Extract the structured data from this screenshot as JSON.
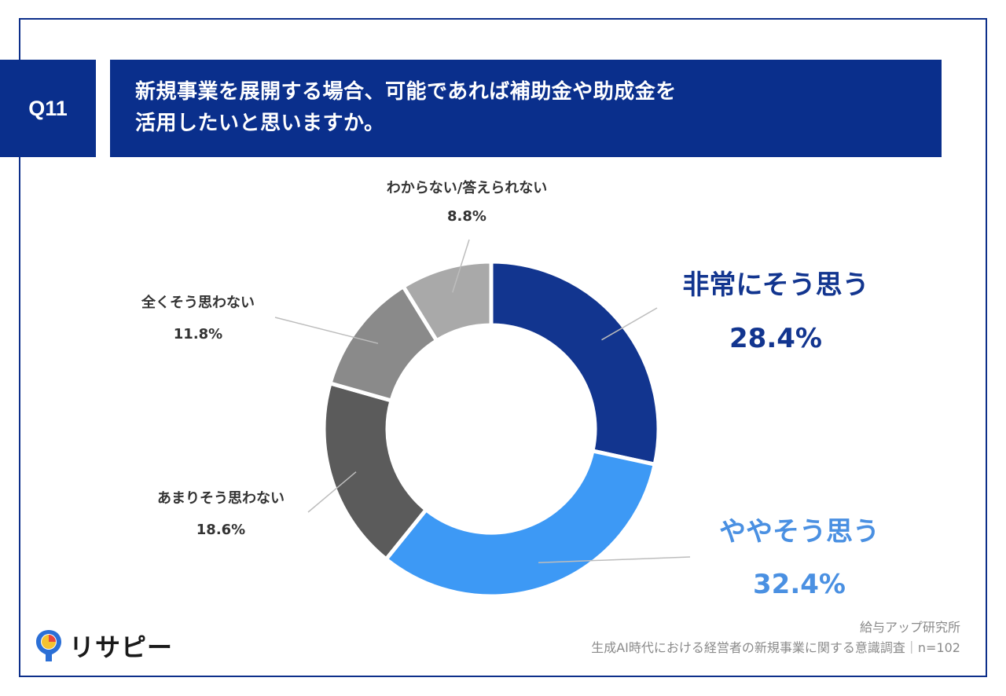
{
  "question": {
    "number": "Q11",
    "line1": "新規事業を展開する場合、可能であれば補助金や助成金を",
    "line2": "活用したいと思いますか。"
  },
  "chart_data": {
    "type": "pie",
    "variant": "donut",
    "unit": "%",
    "slices": [
      {
        "label": "非常にそう思う",
        "value": 28.4,
        "value_label": "28.4%",
        "color": "#12358f"
      },
      {
        "label": "ややそう思う",
        "value": 32.4,
        "value_label": "32.4%",
        "color": "#3d99f5"
      },
      {
        "label": "あまりそう思わない",
        "value": 18.6,
        "value_label": "18.6%",
        "color": "#5b5b5b"
      },
      {
        "label": "全くそう思わない",
        "value": 11.8,
        "value_label": "11.8%",
        "color": "#8a8a8a"
      },
      {
        "label": "わからない/答えられない",
        "value": 8.8,
        "value_label": "8.8%",
        "color": "#a9a9a9"
      }
    ]
  },
  "footer": {
    "source": "給与アップ研究所",
    "survey": "生成AI時代における経営者の新規事業に関する意識調査｜n=102"
  },
  "logo": {
    "text": "リサピー",
    "colors": {
      "ring": "#2b6fd6",
      "yellow": "#f5c230",
      "red": "#e8453c"
    }
  },
  "theme": {
    "frame": "#0d2f8a",
    "header_bg": "#0a2f8c",
    "leader_line": "#bdbdbd"
  }
}
